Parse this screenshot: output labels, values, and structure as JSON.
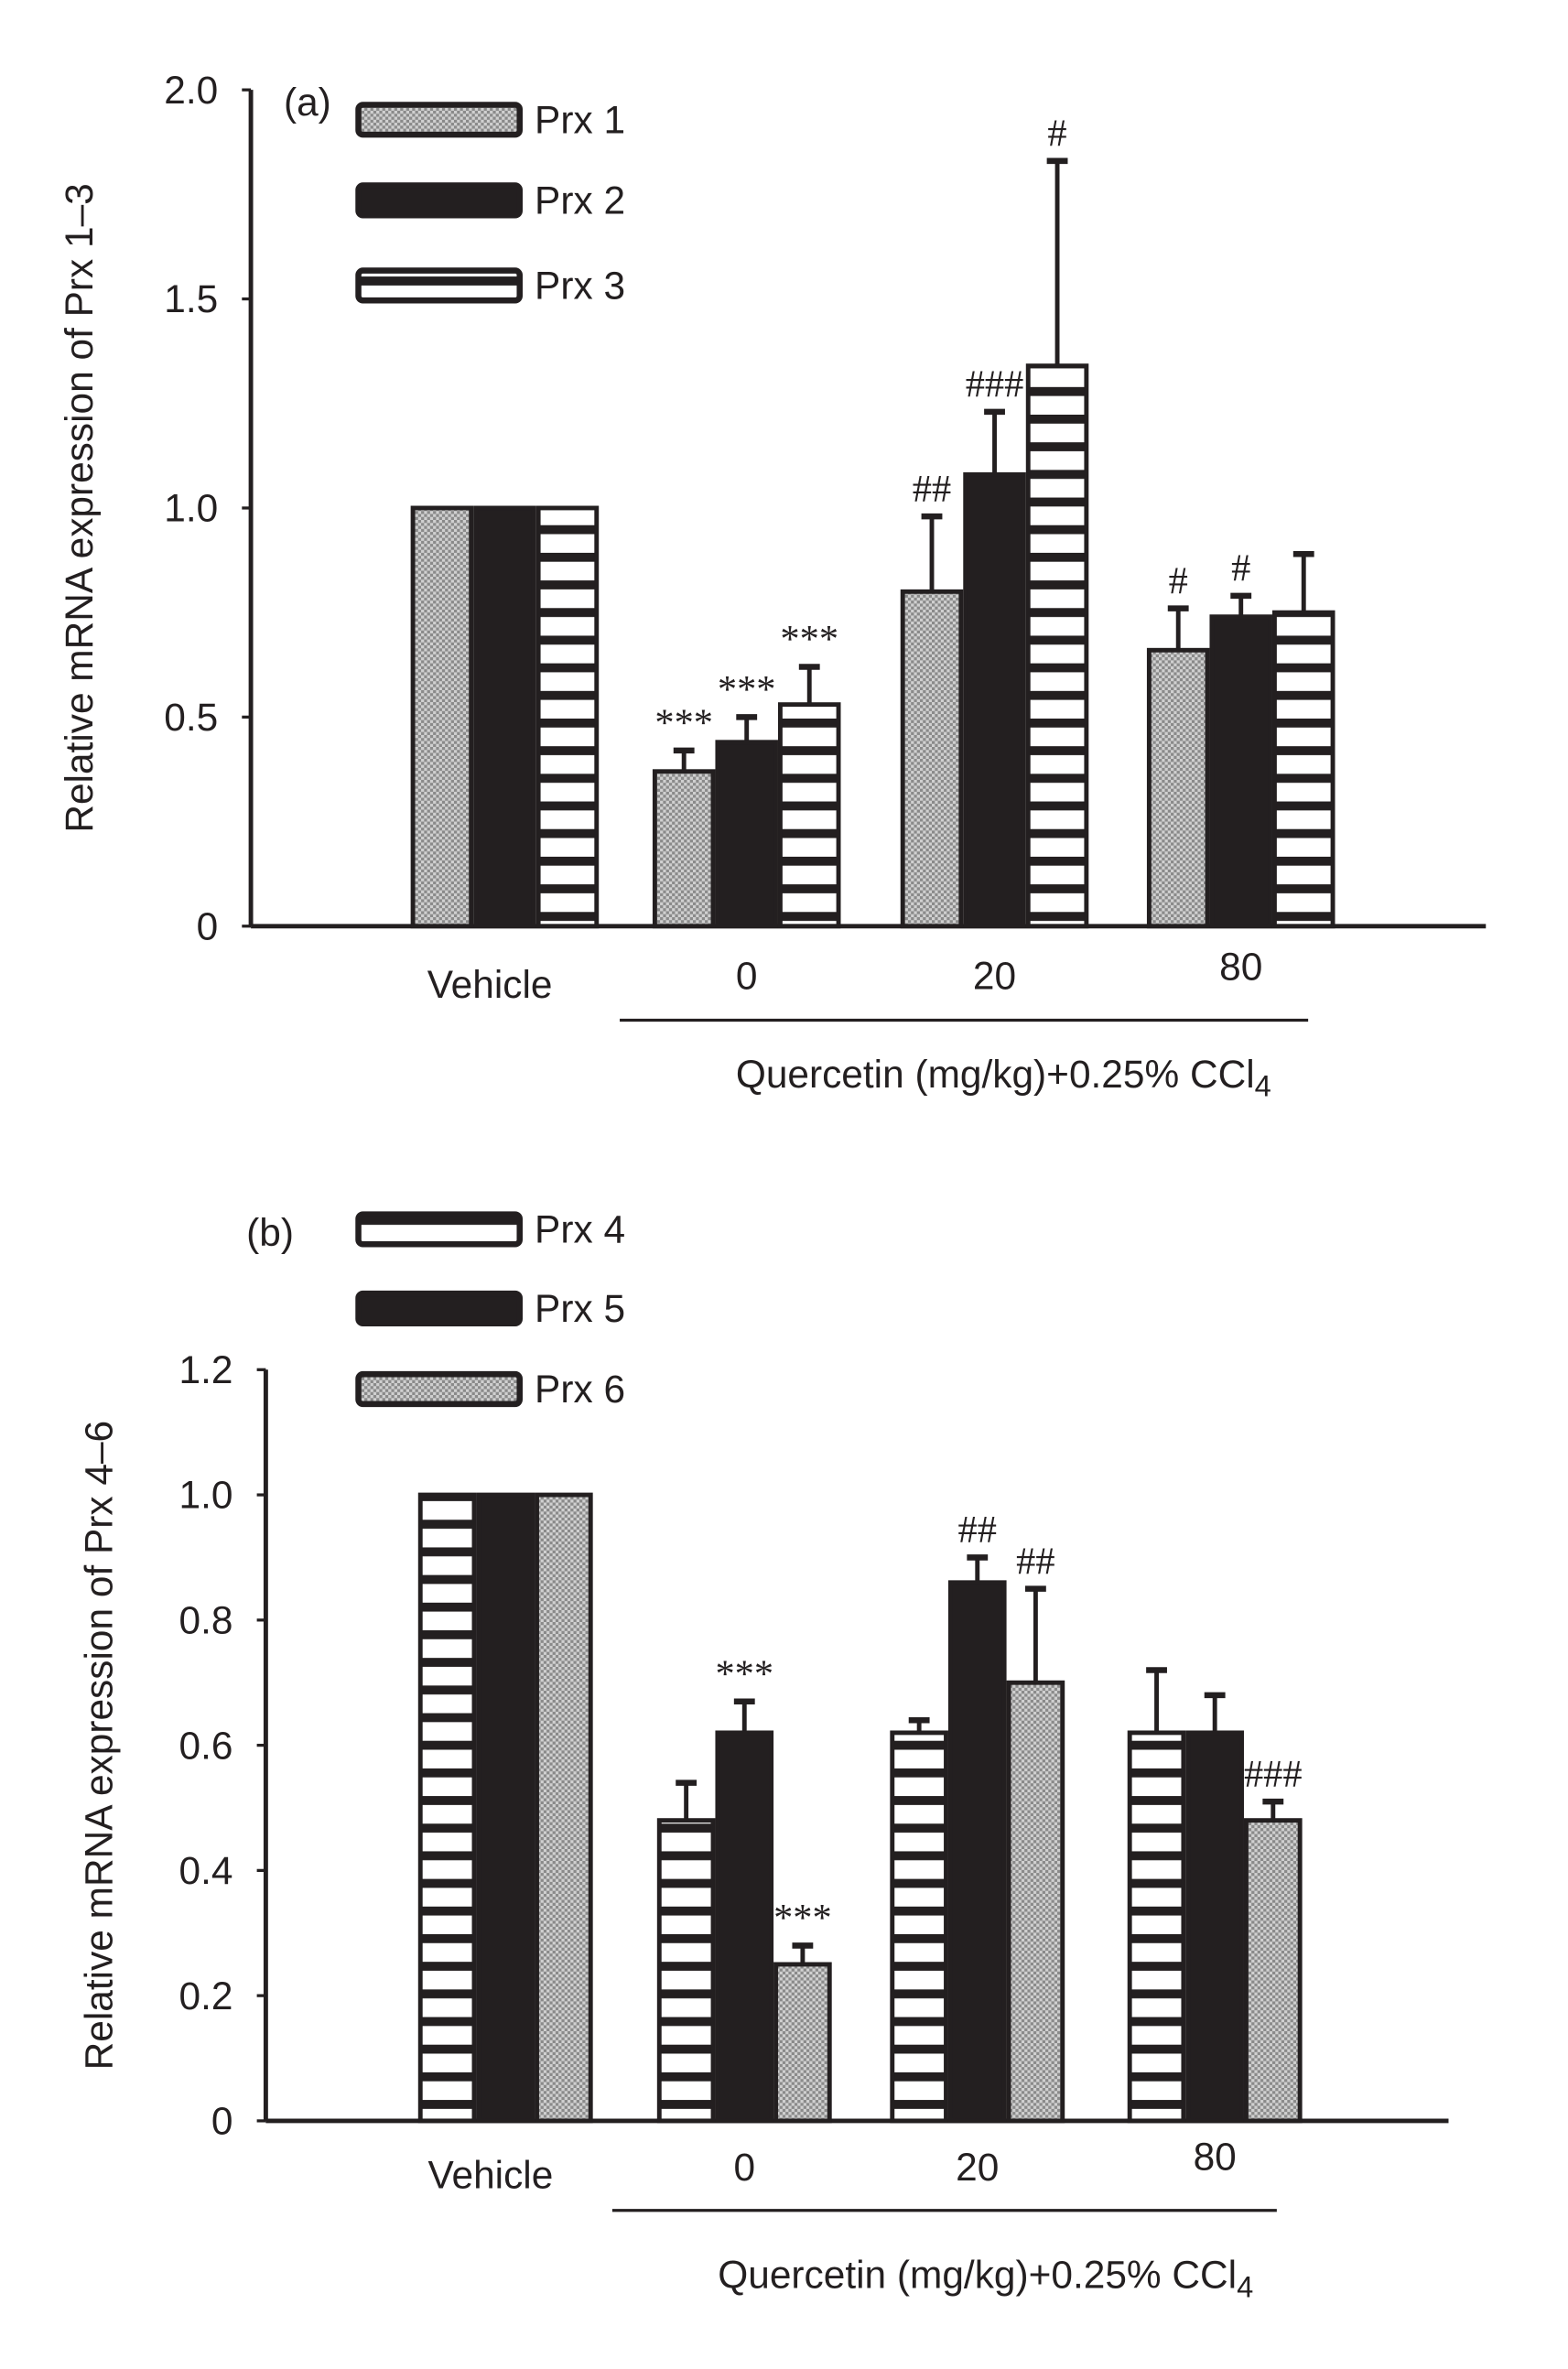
{
  "chart_data": [
    {
      "type": "bar",
      "panel_label": "(a)",
      "ylabel": "Relative mRNA expression of Prx 1–3",
      "xlabel": "Quercetin (mg/kg)+0.25% CCl",
      "xlabel_sub": "4",
      "categories": [
        "Vehicle",
        "0",
        "20",
        "80"
      ],
      "ylim": [
        0,
        2.0
      ],
      "yticks": [
        "0",
        "0.5",
        "1.0",
        "1.5",
        "2.0"
      ],
      "ytick_values": [
        0,
        0.5,
        1.0,
        1.5,
        2.0
      ],
      "grid": false,
      "legend_placement": "top-left",
      "series": [
        {
          "name": "Prx 1",
          "pattern": "dotted-gray",
          "values": [
            1.0,
            0.37,
            0.8,
            0.66
          ],
          "error_top": [
            1.0,
            0.42,
            0.98,
            0.76
          ],
          "annotations": [
            "",
            "***",
            "##",
            "#"
          ]
        },
        {
          "name": "Prx 2",
          "pattern": "solid-black",
          "values": [
            1.0,
            0.44,
            1.08,
            0.74
          ],
          "error_top": [
            1.0,
            0.5,
            1.23,
            0.79
          ],
          "annotations": [
            "",
            "***",
            "###",
            "#"
          ]
        },
        {
          "name": "Prx 3",
          "pattern": "horizontal-stripes",
          "values": [
            1.0,
            0.53,
            1.34,
            0.75
          ],
          "error_top": [
            1.0,
            0.62,
            1.83,
            0.89
          ],
          "annotations": [
            "",
            "***",
            "#",
            ""
          ]
        }
      ]
    },
    {
      "type": "bar",
      "panel_label": "(b)",
      "ylabel": "Relative mRNA expression of Prx 4–6",
      "xlabel": "Quercetin (mg/kg)+0.25% CCl",
      "xlabel_sub": "4",
      "categories": [
        "Vehicle",
        "0",
        "20",
        "80"
      ],
      "ylim": [
        0,
        1.2
      ],
      "yticks": [
        "0",
        "0.2",
        "0.4",
        "0.6",
        "0.8",
        "1.0",
        "1.2"
      ],
      "ytick_values": [
        0,
        0.2,
        0.4,
        0.6,
        0.8,
        1.0,
        1.2
      ],
      "grid": false,
      "legend_placement": "top-left",
      "series": [
        {
          "name": "Prx 4",
          "pattern": "horizontal-stripes",
          "values": [
            1.0,
            0.48,
            0.62,
            0.62
          ],
          "error_top": [
            1.0,
            0.54,
            0.64,
            0.72
          ],
          "annotations": [
            "",
            "",
            "",
            ""
          ]
        },
        {
          "name": "Prx 5",
          "pattern": "solid-black",
          "values": [
            1.0,
            0.62,
            0.86,
            0.62
          ],
          "error_top": [
            1.0,
            0.67,
            0.9,
            0.68
          ],
          "annotations": [
            "",
            "***",
            "##",
            ""
          ]
        },
        {
          "name": "Prx 6",
          "pattern": "dotted-gray",
          "values": [
            1.0,
            0.25,
            0.7,
            0.48
          ],
          "error_top": [
            1.0,
            0.28,
            0.85,
            0.51
          ],
          "annotations": [
            "",
            "***",
            "##",
            "###"
          ]
        }
      ]
    }
  ],
  "colors": {
    "ink": "#231f20",
    "dot_fill": "#b8b8b8",
    "background": "#ffffff"
  }
}
